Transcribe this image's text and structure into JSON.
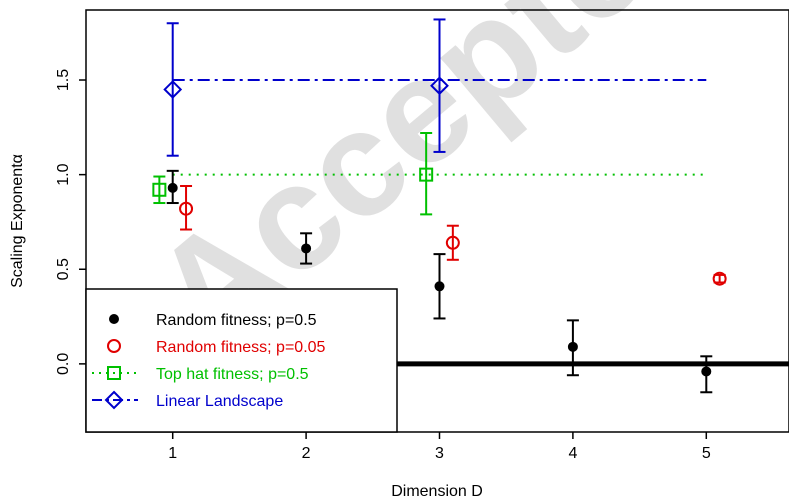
{
  "watermark": "Accepted manuscript",
  "chart_data": {
    "type": "scatter",
    "title": "",
    "xlabel": "Dimension D",
    "ylabel": "Scaling Exponentα",
    "xlim": [
      0.35,
      5.62
    ],
    "ylim": [
      -0.36,
      1.87
    ],
    "xticks": [
      1,
      2,
      3,
      4,
      5
    ],
    "yticks": [
      0.0,
      0.5,
      1.0,
      1.5
    ],
    "ytick_labels": [
      "0.0",
      "0.5",
      "1.0",
      "1.5"
    ],
    "grid": false,
    "legend_position": "bottom-left",
    "reference_lines": [
      {
        "y": 1.5,
        "style": "dash-dot",
        "color": "#0000cc",
        "from_x": 1.0,
        "to_x": 5.0
      },
      {
        "y": 1.0,
        "style": "dotted",
        "color": "#00c000",
        "from_x": 1.0,
        "to_x": 5.0
      },
      {
        "y": 0.0,
        "style": "solid-thick",
        "color": "#000000",
        "from_x": 0.35,
        "to_x": 5.62
      }
    ],
    "series": [
      {
        "name": "Random fitness; p=0.5",
        "marker": "filled-circle",
        "color": "#000000",
        "x": [
          1.0,
          2.0,
          3.0,
          4.0,
          5.0
        ],
        "y": [
          0.93,
          0.61,
          0.41,
          0.09,
          -0.04
        ],
        "err_low": [
          0.85,
          0.53,
          0.24,
          -0.06,
          -0.15
        ],
        "err_high": [
          1.02,
          0.69,
          0.58,
          0.23,
          0.04
        ]
      },
      {
        "name": "Random fitness; p=0.05",
        "marker": "open-circle",
        "color": "#e00000",
        "x": [
          1.1,
          3.1,
          5.1
        ],
        "y": [
          0.82,
          0.64,
          0.45
        ],
        "err_low": [
          0.71,
          0.55,
          0.43
        ],
        "err_high": [
          0.94,
          0.73,
          0.47
        ]
      },
      {
        "name": "Top hat fitness;  p=0.5",
        "marker": "open-square",
        "color": "#00c000",
        "x": [
          0.9,
          2.9
        ],
        "y": [
          0.92,
          1.0
        ],
        "err_low": [
          0.85,
          0.79
        ],
        "err_high": [
          0.99,
          1.22
        ]
      },
      {
        "name": "Linear Landscape",
        "marker": "open-diamond",
        "color": "#0000cc",
        "x": [
          1.0,
          3.0
        ],
        "y": [
          1.45,
          1.47
        ],
        "err_low": [
          1.1,
          1.12
        ],
        "err_high": [
          1.8,
          1.82
        ]
      }
    ]
  }
}
